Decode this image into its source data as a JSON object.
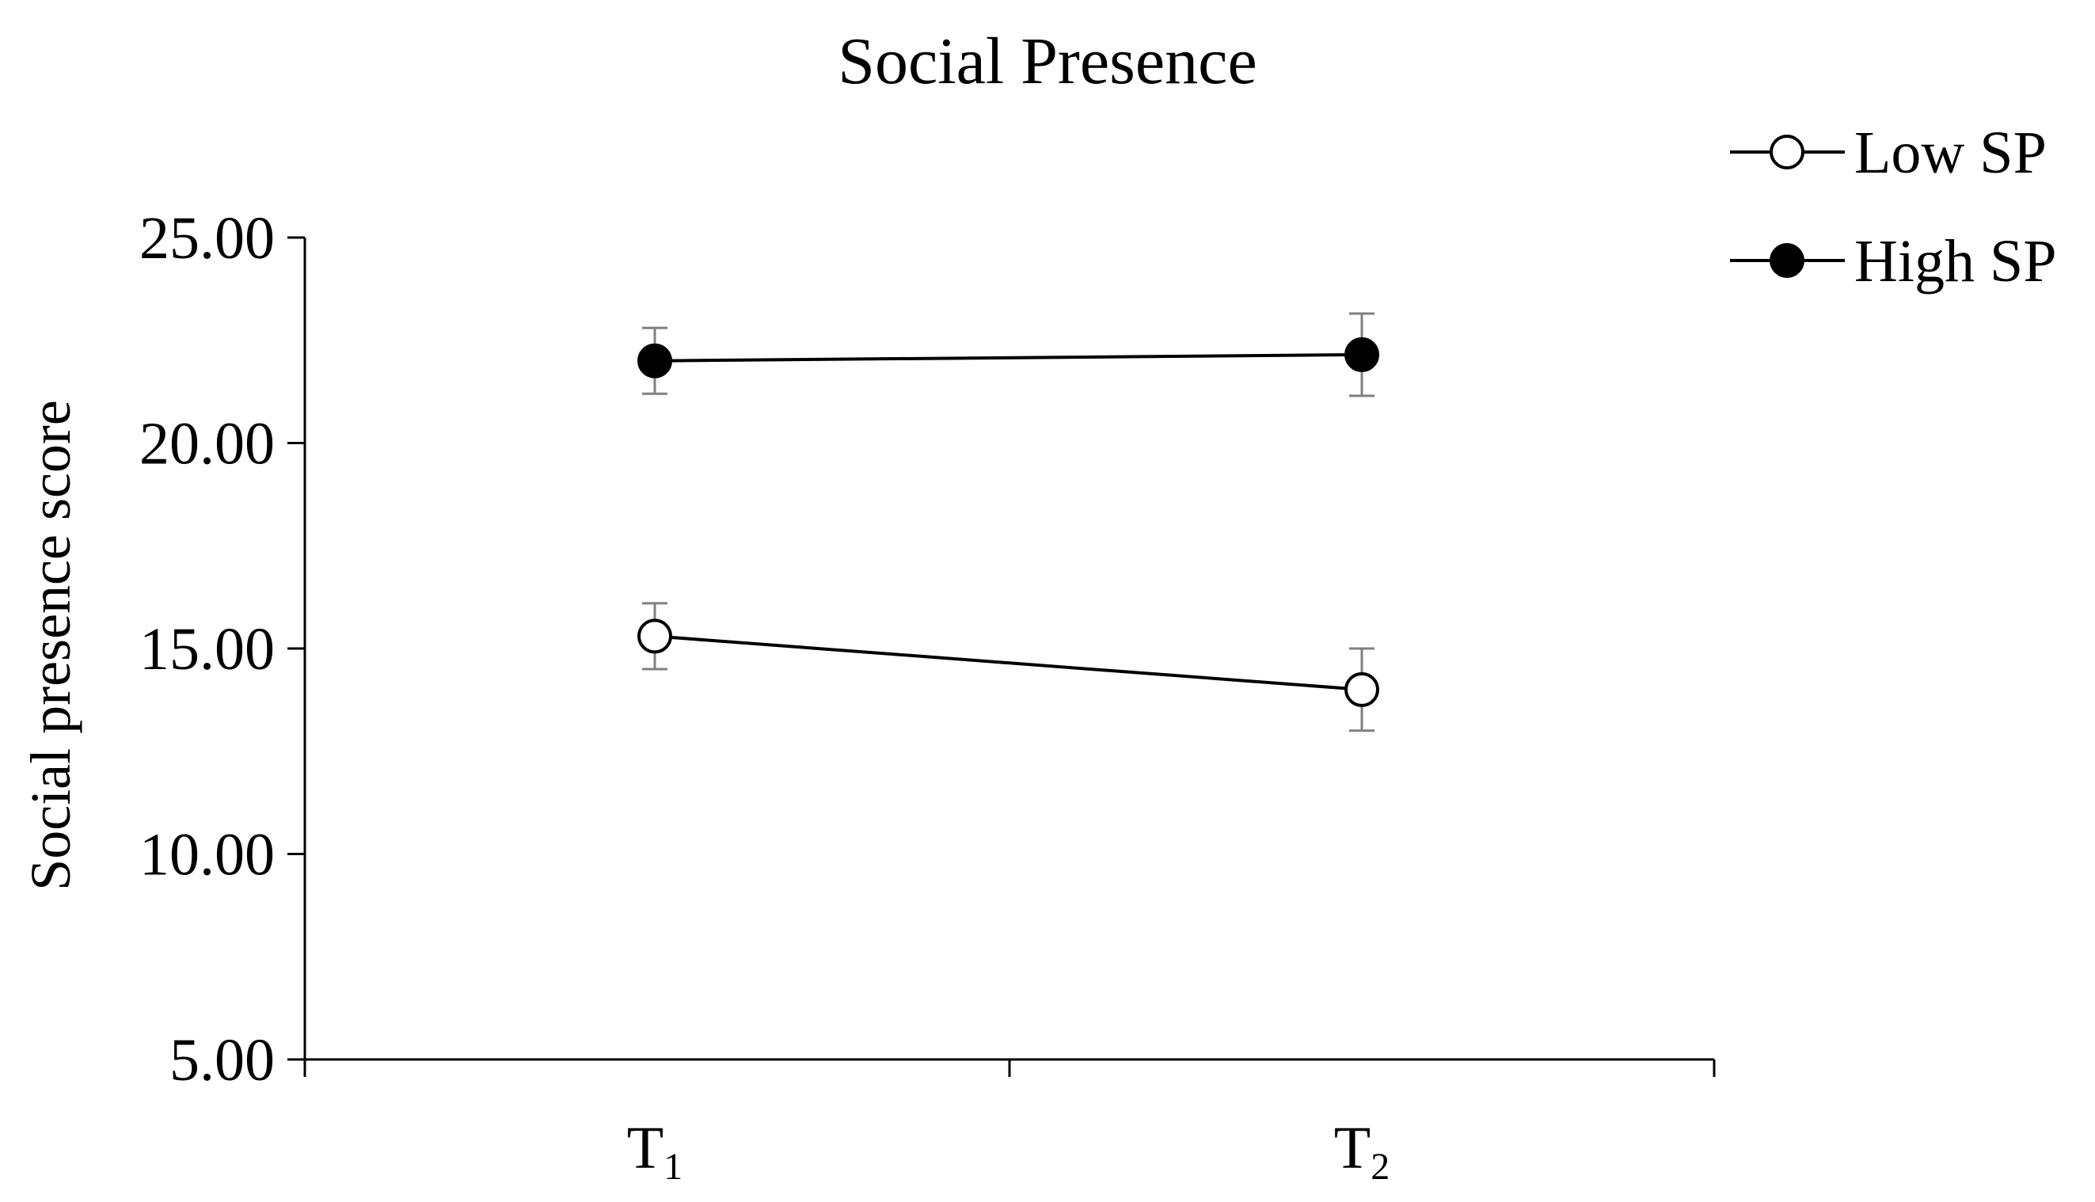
{
  "chart_data": {
    "type": "line",
    "title": "Social Presence",
    "xlabel": "",
    "ylabel": "Social presence score",
    "categories": [
      {
        "base": "T",
        "sub": "1"
      },
      {
        "base": "T",
        "sub": "2"
      }
    ],
    "ylim": [
      5,
      25
    ],
    "yticks": [
      "5.00",
      "10.00",
      "15.00",
      "20.00",
      "25.00"
    ],
    "grid": false,
    "legend_position": "top-right",
    "series": [
      {
        "name": "Low SP",
        "marker": "open-circle",
        "values": [
          15.3,
          14.0
        ],
        "errors": [
          0.8,
          1.0
        ]
      },
      {
        "name": "High SP",
        "marker": "filled-circle",
        "values": [
          22.0,
          22.15
        ],
        "errors": [
          0.8,
          1.0
        ]
      }
    ],
    "colors": {
      "line": "#000000",
      "errorbar": "#808080",
      "axis": "#000000"
    }
  }
}
